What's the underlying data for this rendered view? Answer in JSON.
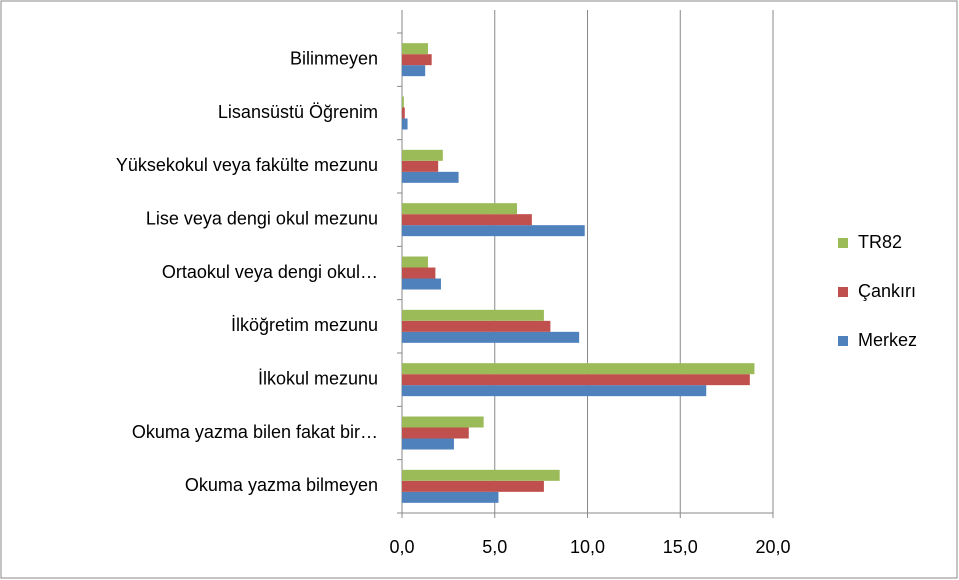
{
  "chart_data": {
    "type": "bar",
    "orientation": "horizontal",
    "categories": [
      "Okuma yazma bilmeyen",
      "Okuma yazma bilen fakat bir…",
      "İlkokul mezunu",
      "İlköğretim mezunu",
      "Ortaokul veya dengi okul…",
      "Lise veya dengi okul mezunu",
      "Yüksekokul veya fakülte mezunu",
      "Lisansüstü Öğrenim",
      "Bilinmeyen"
    ],
    "series": [
      {
        "name": "Merkez",
        "color": "#4f81bd",
        "values": [
          5.2,
          2.8,
          16.4,
          9.55,
          2.1,
          9.85,
          3.05,
          0.3,
          1.25
        ]
      },
      {
        "name": "Çankırı",
        "color": "#c0504d",
        "values": [
          7.65,
          3.6,
          18.75,
          8.0,
          1.8,
          7.0,
          1.95,
          0.15,
          1.6
        ]
      },
      {
        "name": "TR82",
        "color": "#9bbb59",
        "values": [
          8.5,
          4.4,
          19.0,
          7.65,
          1.4,
          6.2,
          2.2,
          0.1,
          1.4
        ]
      }
    ],
    "xlim": [
      0,
      20
    ],
    "xticks": [
      {
        "value": 0,
        "label": "0,0"
      },
      {
        "value": 5,
        "label": "5,0"
      },
      {
        "value": 10,
        "label": "10,0"
      },
      {
        "value": 15,
        "label": "15,0"
      },
      {
        "value": 20,
        "label": "20,0"
      }
    ],
    "grid": true,
    "legend": "right"
  }
}
